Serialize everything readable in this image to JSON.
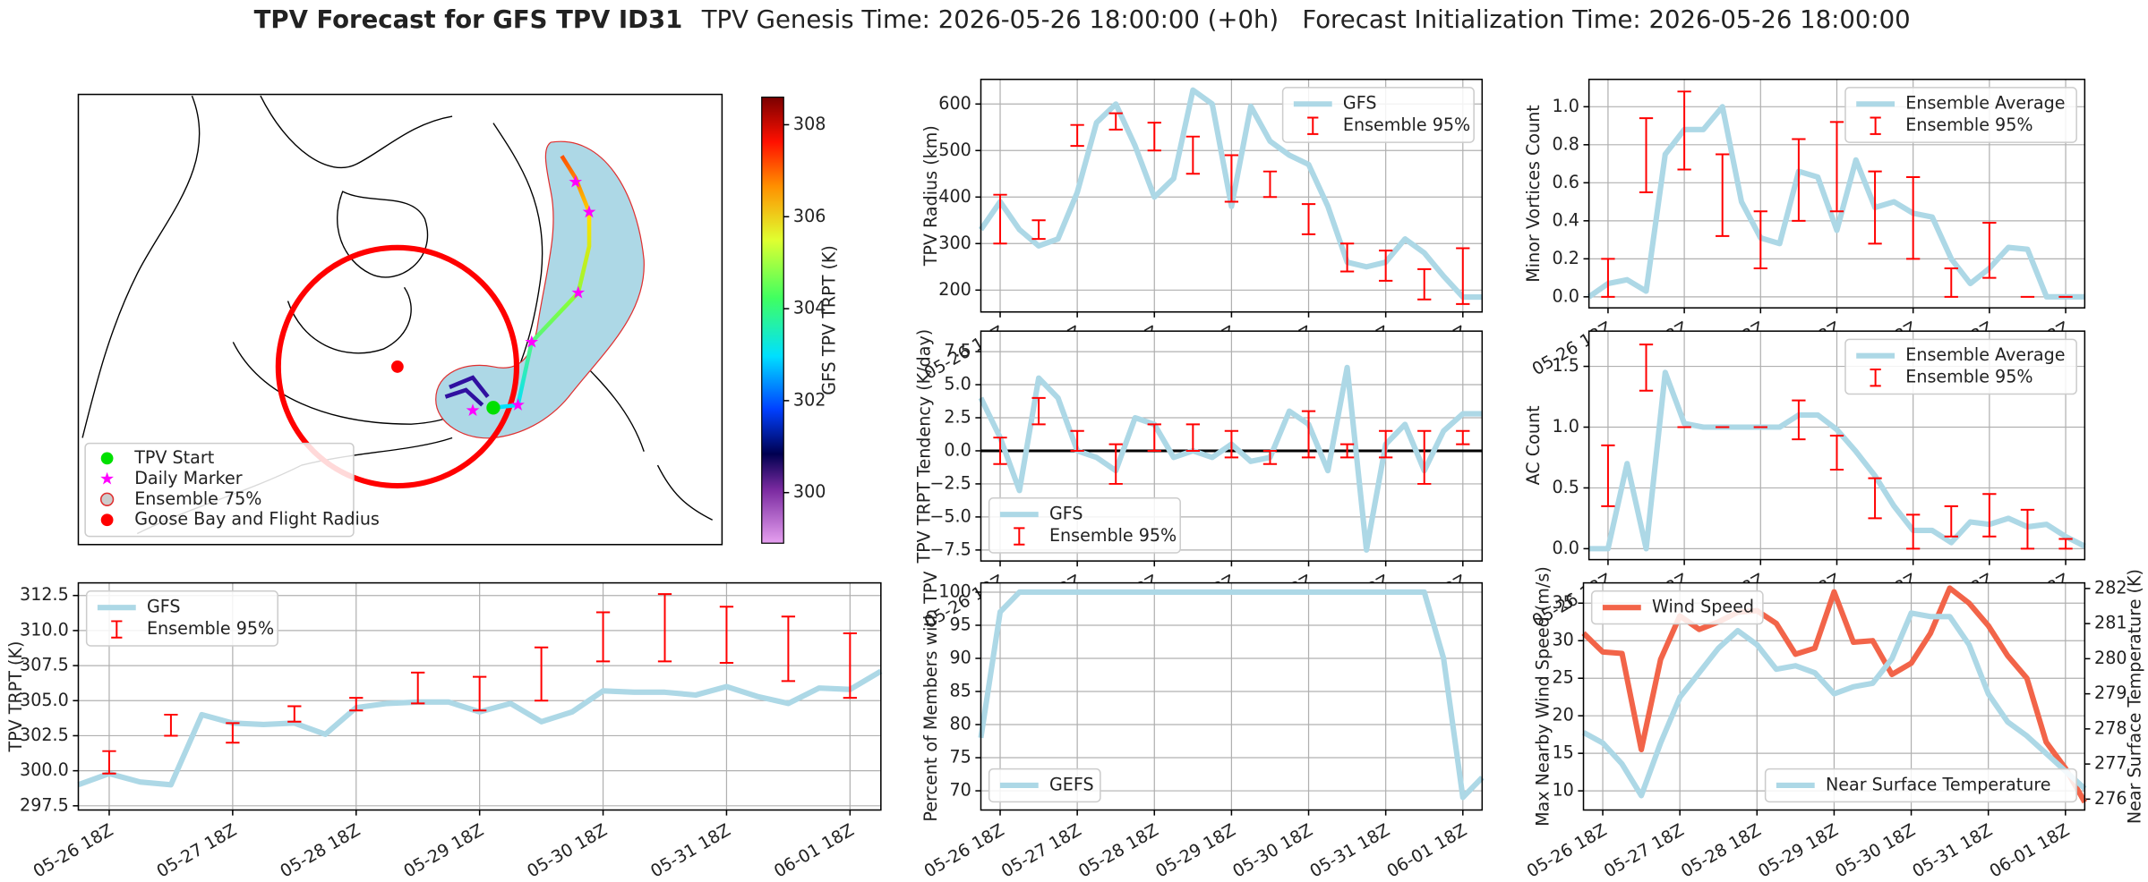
{
  "title": "TPV Forecast for GFS TPV ID31",
  "subtitle": "TPV Genesis Time: 2026-05-26 18:00:00 (+0h)   Forecast Initialization Time: 2026-05-26 18:00:00",
  "chart_data": [
    {
      "type": "map",
      "legend": "lower left",
      "legend_items": [
        "TPV Start",
        "Daily Marker",
        "Ensemble 75%",
        "Goose Bay and Flight Radius"
      ],
      "colorbar": {
        "label": "GFS TPV TRPT (K)",
        "clim": [
          298.9,
          308.6
        ],
        "ticks": [
          300,
          302,
          304,
          306,
          308
        ]
      }
    },
    {
      "type": "line",
      "ylabel": "TPV Radius (km)",
      "grid": true,
      "legend": "upper right",
      "xlim": [
        -6,
        150
      ],
      "ylim": [
        153,
        653
      ],
      "yticks": [
        200,
        300,
        400,
        500,
        600
      ],
      "xticks": [
        {
          "value": 0,
          "label": "05-26 18Z"
        },
        {
          "value": 24,
          "label": "05-27 18Z"
        },
        {
          "value": 48,
          "label": "05-28 18Z"
        },
        {
          "value": 72,
          "label": "05-29 18Z"
        },
        {
          "value": 96,
          "label": "05-30 18Z"
        },
        {
          "value": 120,
          "label": "05-31 18Z"
        },
        {
          "value": 144,
          "label": "06-01 18Z"
        }
      ],
      "x": [
        -6,
        0,
        6,
        12,
        18,
        24,
        30,
        36,
        42,
        48,
        54,
        60,
        66,
        72,
        78,
        84,
        90,
        96,
        102,
        108,
        114,
        120,
        126,
        132,
        138,
        144,
        150
      ],
      "series": [
        {
          "name": "GFS",
          "type": "line",
          "color": "#add8e6",
          "values": [
            330,
            390,
            330,
            295,
            310,
            410,
            560,
            600,
            510,
            400,
            440,
            630,
            600,
            380,
            595,
            520,
            490,
            470,
            380,
            260,
            250,
            260,
            310,
            280,
            230,
            185,
            185
          ]
        },
        {
          "name": "Ensemble 95%",
          "type": "errorbar",
          "color": "#ff0000",
          "x": [
            0,
            12,
            24,
            36,
            48,
            60,
            72,
            84,
            96,
            108,
            120,
            132,
            144
          ],
          "low": [
            300,
            310,
            510,
            545,
            500,
            450,
            390,
            400,
            320,
            240,
            220,
            180,
            170
          ],
          "high": [
            405,
            350,
            555,
            580,
            560,
            530,
            490,
            455,
            385,
            300,
            285,
            245,
            290
          ]
        }
      ]
    },
    {
      "type": "line",
      "ylabel": "TPV TRPT Tendency (K/day)",
      "grid": true,
      "legend": "lower left",
      "hline": 0,
      "xlim": [
        -6,
        150
      ],
      "ylim": [
        -8.33,
        9.05
      ],
      "yticks": [
        {
          "value": -7.5,
          "label": "−7.5"
        },
        {
          "value": -5,
          "label": "−5.0"
        },
        {
          "value": -2.5,
          "label": "−2.5"
        },
        {
          "value": 0,
          "label": "0.0"
        },
        2.5,
        {
          "value": 5,
          "label": "5.0"
        },
        7.5
      ],
      "xticks": [
        {
          "value": 0,
          "label": "05-26 18Z"
        },
        {
          "value": 24,
          "label": "05-27 18Z"
        },
        {
          "value": 48,
          "label": "05-28 18Z"
        },
        {
          "value": 72,
          "label": "05-29 18Z"
        },
        {
          "value": 96,
          "label": "05-30 18Z"
        },
        {
          "value": 120,
          "label": "05-31 18Z"
        },
        {
          "value": 144,
          "label": "06-01 18Z"
        }
      ],
      "x": [
        -6,
        0,
        6,
        12,
        18,
        24,
        30,
        36,
        42,
        48,
        54,
        60,
        66,
        72,
        78,
        84,
        90,
        96,
        102,
        108,
        114,
        120,
        126,
        132,
        138,
        144,
        150
      ],
      "series": [
        {
          "name": "GFS",
          "type": "line",
          "color": "#add8e6",
          "values": [
            4.0,
            1.0,
            -3.0,
            5.5,
            4.0,
            0.0,
            -0.5,
            -1.5,
            2.5,
            2.0,
            -0.5,
            0.0,
            -0.5,
            0.5,
            -0.8,
            -0.5,
            3.0,
            2.0,
            -1.5,
            6.3,
            -7.5,
            0.5,
            2.0,
            -1.5,
            1.5,
            2.8,
            2.8
          ]
        },
        {
          "name": "Ensemble 95%",
          "type": "errorbar",
          "color": "#ff0000",
          "x": [
            0,
            12,
            24,
            36,
            48,
            60,
            72,
            84,
            96,
            108,
            120,
            132,
            144
          ],
          "low": [
            -1,
            2,
            0,
            -2.5,
            0,
            0,
            -0.5,
            -1,
            -0.5,
            -0.5,
            -0.5,
            -2.5,
            0.5
          ],
          "high": [
            1,
            4,
            1.5,
            0.5,
            2,
            2,
            1.5,
            0,
            3,
            0.5,
            1.5,
            1.5,
            1.5
          ]
        }
      ]
    },
    {
      "type": "line",
      "ylabel": "Minor Vortices Count",
      "grid": true,
      "legend": "upper right",
      "xlim": [
        -6,
        150
      ],
      "ylim": [
        -0.058,
        1.144
      ],
      "yticks": [
        {
          "value": 0,
          "label": "0.0"
        },
        0.2,
        0.4,
        0.6,
        0.8,
        {
          "value": 1,
          "label": "1.0"
        }
      ],
      "xticks": [
        {
          "value": 0,
          "label": "05-26 18Z"
        },
        {
          "value": 24,
          "label": "05-27 18Z"
        },
        {
          "value": 48,
          "label": "05-28 18Z"
        },
        {
          "value": 72,
          "label": "05-29 18Z"
        },
        {
          "value": 96,
          "label": "05-30 18Z"
        },
        {
          "value": 120,
          "label": "05-31 18Z"
        },
        {
          "value": 144,
          "label": "06-01 18Z"
        }
      ],
      "x": [
        -6,
        0,
        6,
        12,
        18,
        24,
        30,
        36,
        42,
        48,
        54,
        60,
        66,
        72,
        78,
        84,
        90,
        96,
        102,
        108,
        114,
        120,
        126,
        132,
        138,
        144,
        150
      ],
      "series": [
        {
          "name": "Ensemble Average",
          "type": "line",
          "color": "#add8e6",
          "values": [
            0.0,
            0.07,
            0.09,
            0.03,
            0.75,
            0.88,
            0.88,
            1.0,
            0.5,
            0.31,
            0.28,
            0.66,
            0.63,
            0.35,
            0.72,
            0.47,
            0.5,
            0.44,
            0.42,
            0.2,
            0.07,
            0.15,
            0.26,
            0.25,
            0.0,
            0.0,
            0.0
          ]
        },
        {
          "name": "Ensemble 95%",
          "type": "errorbar",
          "color": "#ff0000",
          "x": [
            0,
            12,
            24,
            36,
            48,
            60,
            72,
            84,
            96,
            108,
            120,
            132,
            144
          ],
          "low": [
            0,
            0.55,
            0.67,
            0.32,
            0.15,
            0.4,
            0.45,
            0.28,
            0.2,
            0,
            0.1,
            0,
            0
          ],
          "high": [
            0.2,
            0.94,
            1.08,
            0.75,
            0.45,
            0.83,
            0.92,
            0.66,
            0.63,
            0.15,
            0.39,
            0,
            0
          ]
        }
      ]
    },
    {
      "type": "line",
      "ylabel": "AC Count",
      "grid": true,
      "legend": "upper right",
      "xlim": [
        -6,
        150
      ],
      "ylim": [
        -0.09,
        1.79
      ],
      "yticks": [
        {
          "value": 0,
          "label": "0.0"
        },
        0.5,
        {
          "value": 1,
          "label": "1.0"
        },
        1.5
      ],
      "xticks": [
        {
          "value": 0,
          "label": "05-26 18Z"
        },
        {
          "value": 24,
          "label": "05-27 18Z"
        },
        {
          "value": 48,
          "label": "05-28 18Z"
        },
        {
          "value": 72,
          "label": "05-29 18Z"
        },
        {
          "value": 96,
          "label": "05-30 18Z"
        },
        {
          "value": 120,
          "label": "05-31 18Z"
        },
        {
          "value": 144,
          "label": "06-01 18Z"
        }
      ],
      "x": [
        -6,
        0,
        6,
        12,
        18,
        24,
        30,
        36,
        42,
        48,
        54,
        60,
        66,
        72,
        78,
        84,
        90,
        96,
        102,
        108,
        114,
        120,
        126,
        132,
        138,
        144,
        150
      ],
      "series": [
        {
          "name": "Ensemble Average",
          "type": "line",
          "color": "#add8e6",
          "values": [
            0,
            0,
            0.7,
            0,
            1.45,
            1.03,
            1.0,
            1.0,
            1.0,
            1.0,
            1.0,
            1.1,
            1.1,
            0.98,
            0.8,
            0.6,
            0.35,
            0.15,
            0.15,
            0.05,
            0.22,
            0.2,
            0.25,
            0.18,
            0.2,
            0.1,
            0.02
          ]
        },
        {
          "name": "Ensemble 95%",
          "type": "errorbar",
          "color": "#ff0000",
          "x": [
            0,
            12,
            24,
            36,
            48,
            60,
            72,
            84,
            96,
            108,
            120,
            132,
            144
          ],
          "low": [
            0.35,
            1.3,
            1,
            1,
            1,
            0.9,
            0.65,
            0.25,
            0,
            0.1,
            0.1,
            0,
            0
          ],
          "high": [
            0.85,
            1.68,
            1,
            1,
            1,
            1.22,
            0.93,
            0.58,
            0.28,
            0.35,
            0.45,
            0.32,
            0.08
          ]
        }
      ]
    },
    {
      "type": "line",
      "ylabel": "TPV TRPT (K)",
      "grid": true,
      "legend": "upper left",
      "xlim": [
        -6,
        150
      ],
      "ylim": [
        297.2,
        313.4
      ],
      "yticks": [
        297.5,
        {
          "value": 300,
          "label": "300.0"
        },
        302.5,
        {
          "value": 305,
          "label": "305.0"
        },
        307.5,
        {
          "value": 310,
          "label": "310.0"
        },
        312.5
      ],
      "xticks": [
        {
          "value": 0,
          "label": "05-26 18Z"
        },
        {
          "value": 24,
          "label": "05-27 18Z"
        },
        {
          "value": 48,
          "label": "05-28 18Z"
        },
        {
          "value": 72,
          "label": "05-29 18Z"
        },
        {
          "value": 96,
          "label": "05-30 18Z"
        },
        {
          "value": 120,
          "label": "05-31 18Z"
        },
        {
          "value": 144,
          "label": "06-01 18Z"
        }
      ],
      "x": [
        -6,
        0,
        6,
        12,
        18,
        24,
        30,
        36,
        42,
        48,
        54,
        60,
        66,
        72,
        78,
        84,
        90,
        96,
        102,
        108,
        114,
        120,
        126,
        132,
        138,
        144,
        150
      ],
      "series": [
        {
          "name": "GFS",
          "type": "line",
          "color": "#add8e6",
          "values": [
            299.0,
            299.8,
            299.2,
            299.0,
            304.0,
            303.4,
            303.3,
            303.4,
            302.6,
            304.5,
            304.8,
            304.9,
            304.9,
            304.2,
            304.8,
            303.5,
            304.2,
            305.7,
            305.6,
            305.6,
            305.4,
            306.0,
            305.3,
            304.8,
            305.9,
            305.8,
            307.1
          ]
        },
        {
          "name": "Ensemble 95%",
          "type": "errorbar",
          "color": "#ff0000",
          "x": [
            0,
            12,
            24,
            36,
            48,
            60,
            72,
            84,
            96,
            108,
            120,
            132,
            144
          ],
          "low": [
            299.8,
            302.5,
            302,
            303.5,
            304.3,
            304.8,
            304.3,
            305,
            307.8,
            307.8,
            307.7,
            306.4,
            305.2
          ],
          "high": [
            301.4,
            304,
            303.4,
            304.6,
            305.2,
            307,
            306.7,
            308.8,
            311.3,
            312.6,
            311.7,
            311,
            309.8
          ]
        }
      ]
    },
    {
      "type": "line",
      "ylabel": "Percent of Members with TPV",
      "grid": true,
      "legend": "lower left",
      "xlim": [
        -6,
        150
      ],
      "ylim": [
        67.1,
        101.4
      ],
      "yticks": [
        70,
        75,
        80,
        85,
        90,
        95,
        100
      ],
      "xticks": [
        {
          "value": 0,
          "label": "05-26 18Z"
        },
        {
          "value": 24,
          "label": "05-27 18Z"
        },
        {
          "value": 48,
          "label": "05-28 18Z"
        },
        {
          "value": 72,
          "label": "05-29 18Z"
        },
        {
          "value": 96,
          "label": "05-30 18Z"
        },
        {
          "value": 120,
          "label": "05-31 18Z"
        },
        {
          "value": 144,
          "label": "06-01 18Z"
        }
      ],
      "x": [
        -6,
        0,
        6,
        12,
        18,
        24,
        30,
        36,
        42,
        48,
        54,
        60,
        66,
        72,
        78,
        84,
        90,
        96,
        102,
        108,
        114,
        120,
        126,
        132,
        138,
        144,
        150
      ],
      "series": [
        {
          "name": "GEFS",
          "type": "line",
          "color": "#add8e6",
          "values": [
            78,
            97,
            100,
            100,
            100,
            100,
            100,
            100,
            100,
            100,
            100,
            100,
            100,
            100,
            100,
            100,
            100,
            100,
            100,
            100,
            100,
            100,
            100,
            100,
            90,
            69,
            72
          ]
        }
      ]
    },
    {
      "type": "line",
      "ylabel": "Max Nearby Wind Speed (m/s)",
      "ylabel_color": "#f26449",
      "y2label": "Near Surface Temperature (K)",
      "y2label_color": "#4169e1",
      "grid": true,
      "xlim": [
        -6,
        150
      ],
      "ylim": [
        7.45,
        37.7
      ],
      "yticks": [
        10,
        15,
        20,
        25,
        30,
        35
      ],
      "y2lim": [
        275.69,
        282.16
      ],
      "y2ticks": [
        276,
        277,
        278,
        279,
        280,
        281,
        282
      ],
      "xticks": [
        {
          "value": 0,
          "label": "05-26 18Z"
        },
        {
          "value": 24,
          "label": "05-27 18Z"
        },
        {
          "value": 48,
          "label": "05-28 18Z"
        },
        {
          "value": 72,
          "label": "05-29 18Z"
        },
        {
          "value": 96,
          "label": "05-30 18Z"
        },
        {
          "value": 120,
          "label": "05-31 18Z"
        },
        {
          "value": 144,
          "label": "06-01 18Z"
        }
      ],
      "x": [
        -6,
        0,
        6,
        12,
        18,
        24,
        30,
        36,
        42,
        48,
        54,
        60,
        66,
        72,
        78,
        84,
        90,
        96,
        102,
        108,
        114,
        120,
        126,
        132,
        138,
        144,
        150
      ],
      "series": [
        {
          "name": "Wind Speed",
          "type": "line",
          "color": "#f26449",
          "legend": "upper left",
          "values": [
            31,
            28.5,
            28.3,
            15.5,
            27.5,
            33.3,
            31.5,
            32.5,
            33.8,
            34,
            32.3,
            28.2,
            29,
            36.5,
            29.8,
            30,
            25.5,
            27,
            31,
            37,
            35,
            32,
            28,
            25,
            16.5,
            13,
            8.5
          ]
        },
        {
          "name": "Near Surface Temperature",
          "type": "line",
          "color": "#add8e6",
          "axis": "y2",
          "legend": "lower right",
          "values": [
            277.9,
            277.6,
            277.0,
            276.1,
            277.6,
            278.9,
            279.6,
            280.3,
            280.8,
            280.4,
            279.7,
            279.8,
            279.6,
            279.0,
            279.2,
            279.3,
            280.0,
            281.3,
            281.2,
            281.2,
            280.4,
            279.0,
            278.2,
            277.8,
            277.3,
            276.8,
            276.3
          ]
        }
      ]
    }
  ]
}
